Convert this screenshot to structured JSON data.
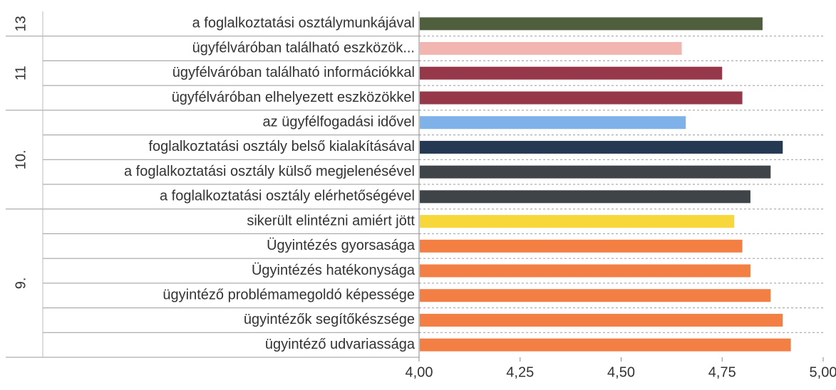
{
  "chart_data": {
    "type": "bar",
    "orientation": "horizontal",
    "categories": [
      "a foglalkoztatási osztálymunkájával",
      "ügyfélváróban található eszközök...",
      "ügyfélváróban található információkkal",
      "ügyfélváróban elhelyezett eszközökkel",
      "az ügyfélfogadási idővel",
      "foglalkoztatási osztály belső kialakításával",
      "a foglalkoztatási osztály külső megjelenésével",
      "a foglalkoztatási osztály elérhetőségével",
      "sikerült elintézni amiért jött",
      "Ügyintézés  gyorsasága",
      "Ügyintézés  hatékonysága",
      "ügyintéző problémamegoldó képessége",
      "ügyintézők segítőkészsége",
      "ügyintéző udvariassága"
    ],
    "groups": [
      "13",
      "11",
      "11",
      "11",
      "10.",
      "10.",
      "10.",
      "10.",
      "9.",
      "9.",
      "9.",
      "9.",
      "9.",
      "9."
    ],
    "values": [
      4.85,
      4.65,
      4.75,
      4.8,
      4.66,
      4.9,
      4.87,
      4.82,
      4.78,
      4.8,
      4.82,
      4.87,
      4.9,
      4.92
    ],
    "colors": [
      "#4f5e3d",
      "#f2b5b0",
      "#96384a",
      "#96384a",
      "#7fb2e8",
      "#253a52",
      "#3f4448",
      "#3f4448",
      "#f7d73a",
      "#f47f45",
      "#f47f45",
      "#f47f45",
      "#f47f45",
      "#f47f45"
    ],
    "xlim": [
      4,
      5
    ],
    "xticks": [
      {
        "value": 4,
        "label": "4,00"
      },
      {
        "value": 4.25,
        "label": "4,25"
      },
      {
        "value": 4.5,
        "label": "4,50"
      },
      {
        "value": 4.75,
        "label": "4,75"
      },
      {
        "value": 5,
        "label": "5,00"
      }
    ],
    "grid": true
  }
}
